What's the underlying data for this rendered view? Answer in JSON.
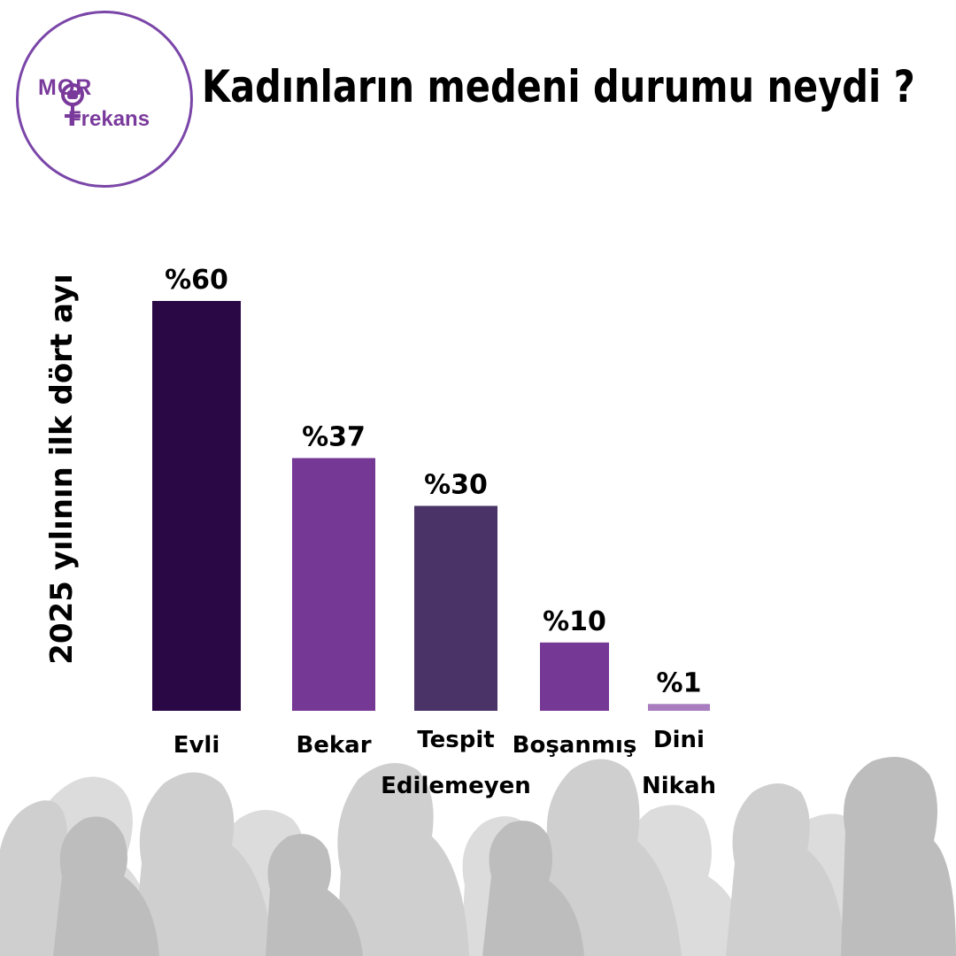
{
  "logo": {
    "line1": "MOR",
    "line2": "Frekans"
  },
  "title": "Kadınların medeni durumu neydi ?",
  "chart_data": {
    "type": "bar",
    "title": "Kadınların medeni durumu neydi ?",
    "ylabel": "2025 yılının ilk dört ayı",
    "xlabel": "",
    "ylim": [
      0,
      60
    ],
    "categories": [
      "Evli",
      "Bekar",
      "Tespit Edilemeyen",
      "Boşanmış",
      "Dini Nikah"
    ],
    "category_lines": [
      [
        "Evli"
      ],
      [
        "Bekar"
      ],
      [
        "Tespit",
        "Edilemeyen"
      ],
      [
        "Boşanmış"
      ],
      [
        "Dini",
        "Nikah"
      ]
    ],
    "values": [
      60,
      37,
      30,
      10,
      1
    ],
    "value_labels": [
      "%60",
      "%37",
      "%30",
      "%10",
      "%1"
    ],
    "colors": [
      "#2a0845",
      "#763895",
      "#4a3366",
      "#763895",
      "#a97cc0"
    ],
    "grid": false,
    "legend": "none"
  }
}
